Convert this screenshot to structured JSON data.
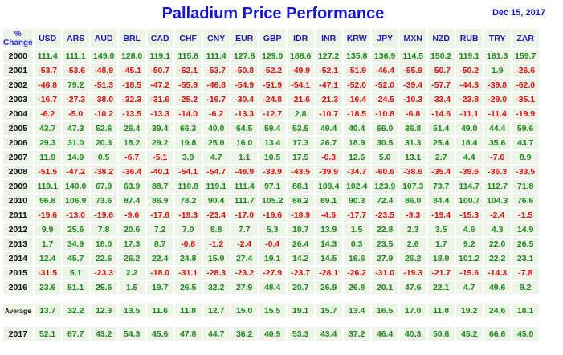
{
  "header": {
    "title": "Palladium Price Performance",
    "date": "Dec 15, 2017",
    "corner_line1": "%",
    "corner_line2": "Change"
  },
  "currencies": [
    "USD",
    "ARS",
    "AUD",
    "BRL",
    "CAD",
    "CHF",
    "CNY",
    "EUR",
    "GBP",
    "IDR",
    "INR",
    "KRW",
    "JPY",
    "MXN",
    "NZD",
    "RUB",
    "TRY",
    "ZAR"
  ],
  "rows": [
    {
      "year": "2000",
      "values": [
        "111.4",
        "111.1",
        "149.0",
        "128.0",
        "119.1",
        "115.8",
        "111.4",
        "127.8",
        "129.0",
        "188.6",
        "127.2",
        "135.8",
        "136.9",
        "114.5",
        "150.2",
        "119.1",
        "161.3",
        "159.7"
      ]
    },
    {
      "year": "2001",
      "values": [
        "-53.7",
        "-53.6",
        "-48.9",
        "-45.1",
        "-50.7",
        "-52.1",
        "-53.7",
        "-50.8",
        "-52.2",
        "-49.9",
        "-52.1",
        "-51.9",
        "-46.4",
        "-55.9",
        "-50.7",
        "-50.2",
        "1.9",
        "-26.6"
      ]
    },
    {
      "year": "2002",
      "values": [
        "-46.8",
        "79.2",
        "-51.3",
        "-18.5",
        "-47.2",
        "-55.8",
        "-46.8",
        "-54.9",
        "-51.9",
        "-54.1",
        "-47.1",
        "-52.0",
        "-52.0",
        "-39.4",
        "-57.7",
        "-44.3",
        "-39.8",
        "-62.0"
      ]
    },
    {
      "year": "2003",
      "values": [
        "-16.7",
        "-27.3",
        "-38.0",
        "-32.3",
        "-31.6",
        "-25.2",
        "-16.7",
        "-30.4",
        "-24.8",
        "-21.6",
        "-21.3",
        "-16.4",
        "-24.5",
        "-10.3",
        "-33.4",
        "-23.8",
        "-29.0",
        "-35.1"
      ]
    },
    {
      "year": "2004",
      "values": [
        "-6.2",
        "-5.0",
        "-10.2",
        "-13.5",
        "-13.3",
        "-14.0",
        "-6.2",
        "-13.3",
        "-12.7",
        "2.8",
        "-10.7",
        "-18.5",
        "-10.8",
        "-6.8",
        "-14.6",
        "-11.1",
        "-11.4",
        "-19.9"
      ]
    },
    {
      "year": "2005",
      "values": [
        "43.7",
        "47.3",
        "52.6",
        "26.4",
        "39.4",
        "66.3",
        "40.0",
        "64.5",
        "59.4",
        "53.5",
        "49.4",
        "40.4",
        "66.0",
        "36.8",
        "51.4",
        "49.0",
        "44.4",
        "59.6"
      ]
    },
    {
      "year": "2006",
      "values": [
        "29.3",
        "31.0",
        "20.3",
        "18.2",
        "29.2",
        "19.8",
        "25.0",
        "16.0",
        "13.4",
        "17.3",
        "26.7",
        "18.9",
        "30.5",
        "31.3",
        "25.4",
        "18.4",
        "35.6",
        "43.7"
      ]
    },
    {
      "year": "2007",
      "values": [
        "11.9",
        "14.9",
        "0.5",
        "-6.7",
        "-5.1",
        "3.9",
        "4.7",
        "1.1",
        "10.5",
        "17.5",
        "-0.3",
        "12.6",
        "5.0",
        "13.1",
        "2.7",
        "4.4",
        "-7.6",
        "8.9"
      ]
    },
    {
      "year": "2008",
      "values": [
        "-51.5",
        "-47.2",
        "-38.2",
        "-36.4",
        "-40.1",
        "-54.1",
        "-54.7",
        "-48.9",
        "-33.9",
        "-43.5",
        "-39.9",
        "-34.7",
        "-60.6",
        "-38.6",
        "-35.4",
        "-39.6",
        "-36.3",
        "-33.5"
      ]
    },
    {
      "year": "2009",
      "values": [
        "119.1",
        "140.0",
        "67.9",
        "63.9",
        "88.7",
        "110.8",
        "119.1",
        "111.4",
        "97.1",
        "88.1",
        "109.4",
        "102.4",
        "123.9",
        "107.3",
        "73.7",
        "114.7",
        "112.7",
        "71.8"
      ]
    },
    {
      "year": "2010",
      "values": [
        "96.8",
        "106.9",
        "73.6",
        "87.4",
        "86.9",
        "78.2",
        "90.4",
        "111.7",
        "105.2",
        "88.2",
        "89.1",
        "90.3",
        "72.4",
        "86.0",
        "84.4",
        "100.7",
        "104.3",
        "76.6"
      ]
    },
    {
      "year": "2011",
      "values": [
        "-19.6",
        "-13.0",
        "-19.6",
        "-9.6",
        "-17.8",
        "-19.3",
        "-23.4",
        "-17.0",
        "-19.6",
        "-18.9",
        "-4.6",
        "-17.7",
        "-23.5",
        "-9.3",
        "-19.4",
        "-15.3",
        "-2.4",
        "-1.5"
      ]
    },
    {
      "year": "2012",
      "values": [
        "9.9",
        "25.6",
        "7.8",
        "20.6",
        "7.2",
        "7.0",
        "8.8",
        "7.7",
        "5.3",
        "18.7",
        "13.9",
        "1.5",
        "22.8",
        "2.3",
        "3.5",
        "4.6",
        "4.3",
        "14.9"
      ]
    },
    {
      "year": "2013",
      "values": [
        "1.7",
        "34.9",
        "18.0",
        "17.3",
        "8.7",
        "-0.8",
        "-1.2",
        "-2.4",
        "-0.4",
        "26.4",
        "14.3",
        "0.3",
        "23.5",
        "2.6",
        "1.7",
        "9.2",
        "22.0",
        "26.5"
      ]
    },
    {
      "year": "2014",
      "values": [
        "12.4",
        "45.7",
        "22.6",
        "26.2",
        "22.4",
        "24.8",
        "15.0",
        "27.4",
        "19.1",
        "14.2",
        "14.5",
        "16.6",
        "27.9",
        "26.2",
        "18.0",
        "101.2",
        "22.2",
        "23.1"
      ]
    },
    {
      "year": "2015",
      "values": [
        "-31.5",
        "5.1",
        "-23.3",
        "2.2",
        "-18.0",
        "-31.1",
        "-28.3",
        "-23.2",
        "-27.9",
        "-23.7",
        "-28.1",
        "-26.2",
        "-31.0",
        "-19.3",
        "-21.7",
        "-15.6",
        "-14.3",
        "-7.8"
      ]
    },
    {
      "year": "2016",
      "values": [
        "23.6",
        "51.1",
        "25.6",
        "1.5",
        "19.7",
        "26.5",
        "32.2",
        "27.9",
        "48.4",
        "20.7",
        "26.9",
        "26.8",
        "20.1",
        "47.6",
        "22.1",
        "4.7",
        "49.6",
        "9.2"
      ]
    }
  ],
  "average": {
    "label": "Average",
    "values": [
      "13.7",
      "32.2",
      "12.3",
      "13.5",
      "11.6",
      "11.8",
      "12.7",
      "15.0",
      "15.5",
      "19.1",
      "15.7",
      "13.4",
      "16.5",
      "17.0",
      "11.8",
      "19.2",
      "24.6",
      "18.1"
    ]
  },
  "last": {
    "year": "2017",
    "values": [
      "52.1",
      "67.7",
      "43.2",
      "54.3",
      "45.6",
      "47.8",
      "44.7",
      "36.2",
      "40.9",
      "53.3",
      "43.4",
      "37.2",
      "46.4",
      "40.3",
      "50.8",
      "45.2",
      "66.6",
      "45.0"
    ]
  }
}
